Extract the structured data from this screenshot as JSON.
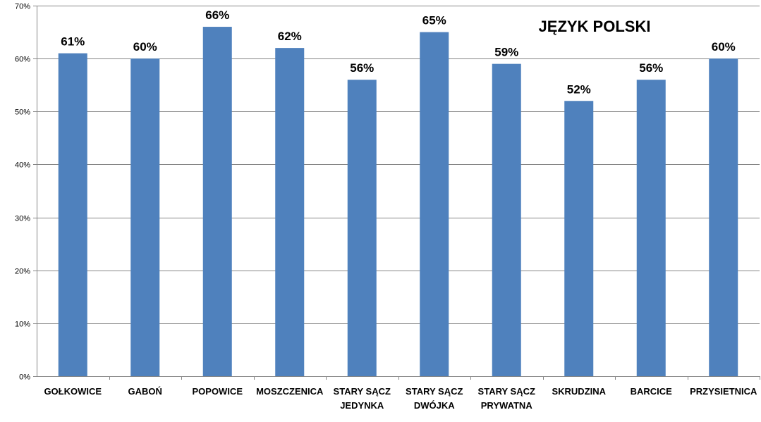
{
  "chart_data": {
    "type": "bar",
    "title": "JĘZYK POLSKI",
    "categories": [
      [
        "GOŁKOWICE"
      ],
      [
        "GABOŃ"
      ],
      [
        "POPOWICE"
      ],
      [
        "MOSZCZENICA"
      ],
      [
        "STARY SĄCZ",
        "JEDYNKA"
      ],
      [
        "STARY SĄCZ",
        "DWÓJKA"
      ],
      [
        "STARY SĄCZ",
        "PRYWATNA"
      ],
      [
        "SKRUDZINA"
      ],
      [
        "BARCICE"
      ],
      [
        "PRZYSIETNICA"
      ]
    ],
    "values": [
      61,
      60,
      66,
      62,
      56,
      65,
      59,
      52,
      56,
      60
    ],
    "value_labels": [
      "61%",
      "60%",
      "66%",
      "62%",
      "56%",
      "65%",
      "59%",
      "52%",
      "56%",
      "60%"
    ],
    "ylim": [
      0,
      70
    ],
    "yticks": [
      {
        "value": 0,
        "label": "0%"
      },
      {
        "value": 10,
        "label": "10%"
      },
      {
        "value": 20,
        "label": "20%"
      },
      {
        "value": 30,
        "label": "30%"
      },
      {
        "value": 40,
        "label": "40%"
      },
      {
        "value": 50,
        "label": "50%"
      },
      {
        "value": 60,
        "label": "60%"
      },
      {
        "value": 70,
        "label": "70%"
      }
    ],
    "xlabel": "",
    "ylabel": "",
    "grid": true,
    "legend": "none",
    "colors": {
      "bar": "#4F81BD",
      "grid": "#868686",
      "axis": "#868686",
      "text": "#000000"
    }
  }
}
